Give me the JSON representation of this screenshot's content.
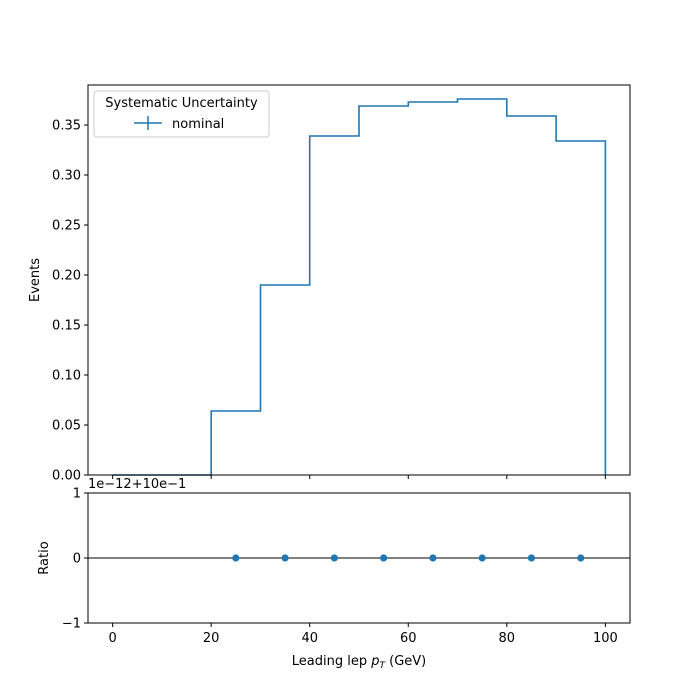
{
  "chart_data": [
    {
      "type": "histogram-step",
      "bin_edges": [
        0,
        10,
        20,
        30,
        40,
        50,
        60,
        70,
        80,
        90,
        100
      ],
      "series": [
        {
          "name": "nominal",
          "values": [
            0.0,
            0.0,
            0.064,
            0.19,
            0.339,
            0.369,
            0.373,
            0.376,
            0.359,
            0.334
          ],
          "color": "#1f77b4"
        }
      ],
      "ylabel": "Events",
      "ylim": [
        0,
        0.39
      ],
      "yticks": [
        "0.00",
        "0.05",
        "0.10",
        "0.15",
        "0.20",
        "0.25",
        "0.30",
        "0.35"
      ],
      "xlim": [
        -5,
        105
      ],
      "grid": false,
      "legend": {
        "title": "Systematic Uncertainty",
        "placement": "top-left",
        "entries": [
          "nominal"
        ]
      }
    },
    {
      "type": "scatter",
      "x": [
        25,
        35,
        45,
        55,
        65,
        75,
        85,
        95
      ],
      "y": [
        0,
        0,
        0,
        0,
        0,
        0,
        0,
        0
      ],
      "ylabel": "Ratio",
      "xlabel_prefix": "Leading lep ",
      "xlabel_symbol": "p",
      "xlabel_subscript": "T",
      "xlabel_suffix": " (GeV)",
      "offset_text": "1e−12+10e−1",
      "ylim": [
        -1,
        1
      ],
      "yticks": [
        "−1",
        "0",
        "1"
      ],
      "xticks": [
        "0",
        "20",
        "40",
        "60",
        "80",
        "100"
      ],
      "xlim": [
        -5,
        105
      ],
      "reference_line": 0,
      "color": "#1f77b4"
    }
  ]
}
